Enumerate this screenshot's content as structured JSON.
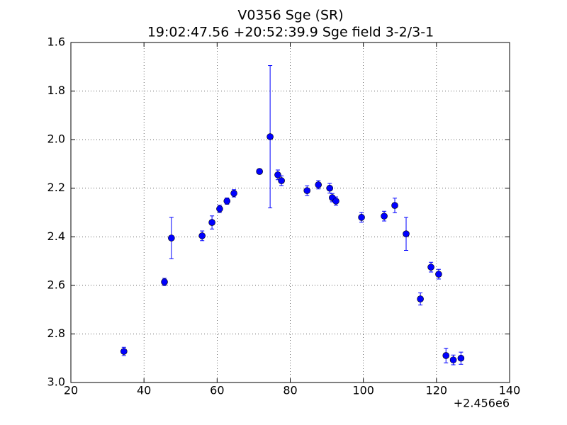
{
  "chart_data": {
    "type": "errorbar",
    "title": "V0356 Sge (SR)",
    "subtitle": "19:02:47.56 +20:52:39.9 Sge field 3-2/3-1",
    "x_offset_label": "+2.456e6",
    "color": "#0000ff",
    "x": [
      34.5,
      45.6,
      47.5,
      55.9,
      58.6,
      60.7,
      62.7,
      64.6,
      71.6,
      74.5,
      76.6,
      77.6,
      84.6,
      87.7,
      90.8,
      91.5,
      92.5,
      99.5,
      105.7,
      108.6,
      111.7,
      115.6,
      118.5,
      120.6,
      122.6,
      124.6,
      126.7
    ],
    "values": [
      2.872,
      2.586,
      2.405,
      2.396,
      2.341,
      2.285,
      2.253,
      2.221,
      2.131,
      1.988,
      2.145,
      2.169,
      2.21,
      2.186,
      2.2,
      2.239,
      2.253,
      2.32,
      2.315,
      2.271,
      2.388,
      2.656,
      2.525,
      2.554,
      2.889,
      2.907,
      2.9
    ],
    "errors": [
      0.017,
      0.015,
      0.085,
      0.02,
      0.027,
      0.015,
      0.013,
      0.015,
      0.01,
      0.293,
      0.02,
      0.02,
      0.02,
      0.017,
      0.02,
      0.017,
      0.017,
      0.02,
      0.02,
      0.03,
      0.068,
      0.025,
      0.02,
      0.02,
      0.03,
      0.02,
      0.025
    ],
    "xlim": [
      20,
      140
    ],
    "xticks": [
      20,
      40,
      60,
      80,
      100,
      120,
      140
    ],
    "ylim": [
      3.0,
      1.6
    ],
    "yticks": [
      1.6,
      1.8,
      {
        "value": 2.0,
        "label": "2.0"
      },
      2.2,
      2.4,
      2.6,
      2.8,
      {
        "value": 3.0,
        "label": "3.0"
      }
    ],
    "y_inverted": true,
    "grid": true
  }
}
